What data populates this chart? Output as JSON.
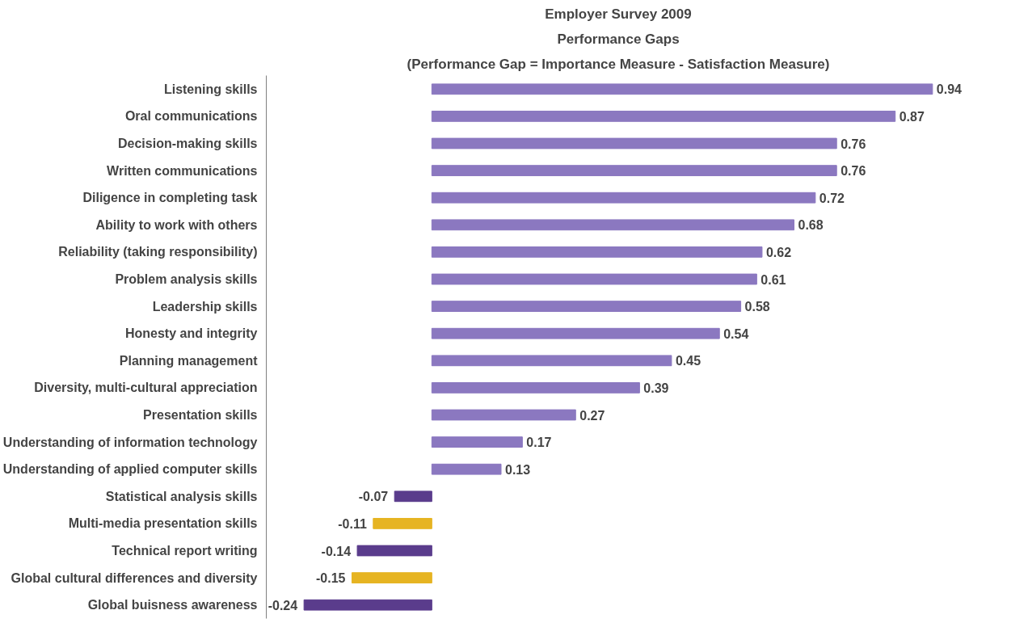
{
  "chart_data": {
    "type": "bar",
    "orientation": "horizontal",
    "title": "Employer Survey 2009",
    "subtitle": "Performance Gaps",
    "annotations": [
      "(Performance Gap = Importance Measure - Satisfaction Measure)"
    ],
    "categories": [
      "Listening skills",
      "Oral communications",
      "Decision-making skills",
      "Written communications",
      "Diligence in completing task",
      "Ability to work with others",
      "Reliability (taking responsibility)",
      "Problem analysis skills",
      "Leadership skills",
      "Honesty and integrity",
      "Planning management",
      "Diversity, multi-cultural appreciation",
      "Presentation skills",
      "Understanding of information technology",
      "Understanding of applied computer skills",
      "Statistical analysis skills",
      "Multi-media presentation skills",
      "Technical report writing",
      "Global cultural differences and diversity",
      "Global buisness awareness"
    ],
    "values": [
      0.94,
      0.87,
      0.76,
      0.76,
      0.72,
      0.68,
      0.62,
      0.61,
      0.58,
      0.54,
      0.45,
      0.39,
      0.27,
      0.17,
      0.13,
      -0.07,
      -0.11,
      -0.14,
      -0.15,
      -0.24
    ],
    "colors": [
      "#8b78c0",
      "#8b78c0",
      "#8b78c0",
      "#8b78c0",
      "#8b78c0",
      "#8b78c0",
      "#8b78c0",
      "#8b78c0",
      "#8b78c0",
      "#8b78c0",
      "#8b78c0",
      "#8b78c0",
      "#8b78c0",
      "#8b78c0",
      "#8b78c0",
      "#5a3c8c",
      "#e6b422",
      "#5a3c8c",
      "#e6b422",
      "#5a3c8c"
    ],
    "data_labels": true,
    "grid": false
  }
}
